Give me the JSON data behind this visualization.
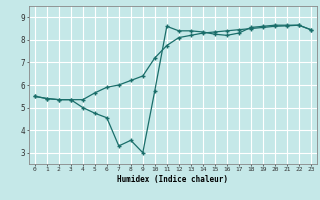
{
  "xlabel": "Humidex (Indice chaleur)",
  "background_color": "#c5e8e8",
  "grid_color": "#ffffff",
  "line_color": "#1a6e6a",
  "x_ticks": [
    0,
    1,
    2,
    3,
    4,
    5,
    6,
    7,
    8,
    9,
    10,
    11,
    12,
    13,
    14,
    15,
    16,
    17,
    18,
    19,
    20,
    21,
    22,
    23
  ],
  "y_ticks": [
    3,
    4,
    5,
    6,
    7,
    8,
    9
  ],
  "xlim": [
    -0.5,
    23.5
  ],
  "ylim": [
    2.5,
    9.5
  ],
  "line1_x": [
    0,
    1,
    2,
    3,
    4,
    5,
    6,
    7,
    8,
    9,
    10,
    11,
    12,
    13,
    14,
    15,
    16,
    17,
    18,
    19,
    20,
    21,
    22,
    23
  ],
  "line1_y": [
    5.5,
    5.4,
    5.35,
    5.35,
    5.0,
    4.75,
    4.55,
    3.3,
    3.55,
    3.0,
    5.75,
    8.6,
    8.4,
    8.4,
    8.35,
    8.25,
    8.2,
    8.3,
    8.55,
    8.6,
    8.65,
    8.65,
    8.65,
    8.45
  ],
  "line2_x": [
    0,
    1,
    2,
    3,
    4,
    5,
    6,
    7,
    8,
    9,
    10,
    11,
    12,
    13,
    14,
    15,
    16,
    17,
    18,
    19,
    20,
    21,
    22,
    23
  ],
  "line2_y": [
    5.5,
    5.4,
    5.35,
    5.35,
    5.35,
    5.65,
    5.9,
    6.0,
    6.2,
    6.4,
    7.2,
    7.75,
    8.1,
    8.2,
    8.3,
    8.35,
    8.4,
    8.45,
    8.5,
    8.55,
    8.6,
    8.62,
    8.65,
    8.45
  ]
}
